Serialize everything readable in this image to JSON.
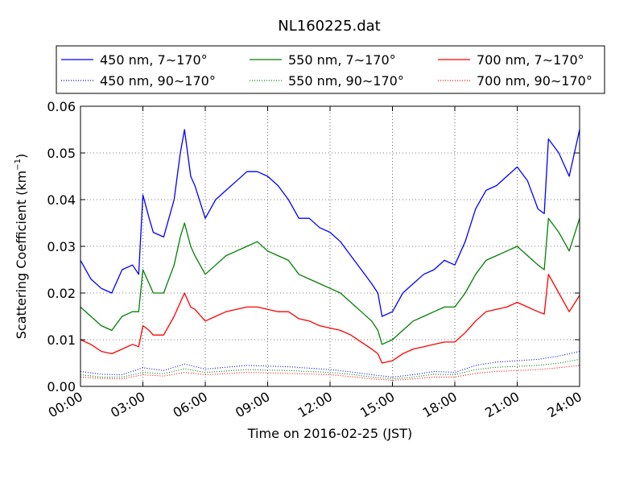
{
  "chart_data": {
    "type": "line",
    "title": "NL160225.dat",
    "xlabel": "Time on 2016-02-25 (JST)",
    "ylabel": "Scattering Coefficient (km",
    "ylabel_sup": "−1",
    "ylabel_end": ")",
    "x_unit": "hours",
    "xlim": [
      0,
      24
    ],
    "ylim": [
      0,
      0.06
    ],
    "x_ticks": [
      0,
      3,
      6,
      9,
      12,
      15,
      18,
      21,
      24
    ],
    "x_tick_labels": [
      "00:00",
      "03:00",
      "06:00",
      "09:00",
      "12:00",
      "15:00",
      "18:00",
      "21:00",
      "24:00"
    ],
    "y_ticks": [
      0,
      0.01,
      0.02,
      0.03,
      0.04,
      0.05,
      0.06
    ],
    "y_tick_labels": [
      "0.00",
      "0.01",
      "0.02",
      "0.03",
      "0.04",
      "0.05",
      "0.06"
    ],
    "grid": true,
    "legend_position": "top (above plot)",
    "series": [
      {
        "name": "450 nm, 7∼170°",
        "color": "#0000ff",
        "style": "solid",
        "x": [
          0,
          0.5,
          1,
          1.5,
          2,
          2.5,
          2.8,
          3,
          3.3,
          3.5,
          4,
          4.5,
          4.8,
          5,
          5.3,
          5.5,
          6,
          6.5,
          7,
          7.5,
          8,
          8.5,
          9,
          9.5,
          10,
          10.5,
          11,
          11.5,
          12,
          12.5,
          13,
          13.5,
          14,
          14.3,
          14.5,
          15,
          15.5,
          16,
          16.5,
          17,
          17.5,
          18,
          18.5,
          19,
          19.5,
          20,
          20.5,
          21,
          21.5,
          22,
          22.3,
          22.5,
          23,
          23.5,
          24
        ],
        "y": [
          0.027,
          0.023,
          0.021,
          0.02,
          0.025,
          0.026,
          0.024,
          0.041,
          0.036,
          0.033,
          0.032,
          0.04,
          0.05,
          0.055,
          0.045,
          0.043,
          0.036,
          0.04,
          0.042,
          0.044,
          0.046,
          0.046,
          0.045,
          0.043,
          0.04,
          0.036,
          0.036,
          0.034,
          0.033,
          0.031,
          0.028,
          0.025,
          0.022,
          0.02,
          0.015,
          0.016,
          0.02,
          0.022,
          0.024,
          0.025,
          0.027,
          0.026,
          0.031,
          0.038,
          0.042,
          0.043,
          0.045,
          0.047,
          0.044,
          0.038,
          0.037,
          0.053,
          0.05,
          0.045,
          0.055
        ]
      },
      {
        "name": "450 nm, 90∼170°",
        "color": "#0000ff",
        "style": "dotted",
        "x": [
          0,
          1,
          2,
          3,
          4,
          5,
          6,
          8,
          10,
          12,
          13,
          14,
          15,
          16,
          17,
          18,
          19,
          20,
          21,
          22,
          23,
          24
        ],
        "y": [
          0.0032,
          0.0026,
          0.0025,
          0.004,
          0.0034,
          0.0048,
          0.0037,
          0.0045,
          0.0042,
          0.0036,
          0.0031,
          0.0025,
          0.002,
          0.0025,
          0.0032,
          0.003,
          0.0045,
          0.0052,
          0.0055,
          0.0058,
          0.0065,
          0.0075
        ]
      },
      {
        "name": "550 nm, 7∼170°",
        "color": "#008000",
        "style": "solid",
        "x": [
          0,
          0.5,
          1,
          1.5,
          2,
          2.5,
          2.8,
          3,
          3.3,
          3.5,
          4,
          4.5,
          4.8,
          5,
          5.3,
          5.5,
          6,
          6.5,
          7,
          7.5,
          8,
          8.5,
          9,
          9.5,
          10,
          10.5,
          11,
          11.5,
          12,
          12.5,
          13,
          13.5,
          14,
          14.3,
          14.5,
          15,
          15.5,
          16,
          16.5,
          17,
          17.5,
          18,
          18.5,
          19,
          19.5,
          20,
          20.5,
          21,
          21.5,
          22,
          22.3,
          22.5,
          23,
          23.5,
          24
        ],
        "y": [
          0.017,
          0.015,
          0.013,
          0.012,
          0.015,
          0.016,
          0.016,
          0.025,
          0.022,
          0.02,
          0.02,
          0.026,
          0.032,
          0.035,
          0.03,
          0.028,
          0.024,
          0.026,
          0.028,
          0.029,
          0.03,
          0.031,
          0.029,
          0.028,
          0.027,
          0.024,
          0.023,
          0.022,
          0.021,
          0.02,
          0.018,
          0.016,
          0.014,
          0.012,
          0.009,
          0.01,
          0.012,
          0.014,
          0.015,
          0.016,
          0.017,
          0.017,
          0.02,
          0.024,
          0.027,
          0.028,
          0.029,
          0.03,
          0.028,
          0.026,
          0.025,
          0.036,
          0.033,
          0.029,
          0.036
        ]
      },
      {
        "name": "550 nm, 90∼170°",
        "color": "#008000",
        "style": "dotted",
        "x": [
          0,
          1,
          2,
          3,
          4,
          5,
          6,
          8,
          10,
          12,
          13,
          14,
          15,
          16,
          17,
          18,
          19,
          20,
          21,
          22,
          23,
          24
        ],
        "y": [
          0.0025,
          0.002,
          0.002,
          0.003,
          0.0027,
          0.0038,
          0.003,
          0.0036,
          0.0034,
          0.003,
          0.0026,
          0.002,
          0.0016,
          0.002,
          0.0026,
          0.0025,
          0.0036,
          0.0041,
          0.0043,
          0.0045,
          0.005,
          0.0058
        ]
      },
      {
        "name": "700 nm, 7∼170°",
        "color": "#ff0000",
        "style": "solid",
        "x": [
          0,
          0.5,
          1,
          1.5,
          2,
          2.5,
          2.8,
          3,
          3.3,
          3.5,
          4,
          4.5,
          4.8,
          5,
          5.3,
          5.5,
          6,
          6.5,
          7,
          7.5,
          8,
          8.5,
          9,
          9.5,
          10,
          10.5,
          11,
          11.5,
          12,
          12.5,
          13,
          13.5,
          14,
          14.3,
          14.5,
          15,
          15.5,
          16,
          16.5,
          17,
          17.5,
          18,
          18.5,
          19,
          19.5,
          20,
          20.5,
          21,
          21.5,
          22,
          22.3,
          22.5,
          23,
          23.5,
          24
        ],
        "y": [
          0.01,
          0.009,
          0.0075,
          0.007,
          0.008,
          0.009,
          0.0085,
          0.013,
          0.012,
          0.011,
          0.011,
          0.015,
          0.018,
          0.02,
          0.017,
          0.0165,
          0.014,
          0.015,
          0.016,
          0.0165,
          0.017,
          0.017,
          0.0165,
          0.016,
          0.016,
          0.0145,
          0.014,
          0.013,
          0.0125,
          0.012,
          0.011,
          0.0095,
          0.008,
          0.007,
          0.005,
          0.0055,
          0.007,
          0.008,
          0.0085,
          0.009,
          0.0095,
          0.0095,
          0.0115,
          0.014,
          0.016,
          0.0165,
          0.017,
          0.018,
          0.017,
          0.016,
          0.0155,
          0.024,
          0.02,
          0.016,
          0.0195
        ]
      },
      {
        "name": "700 nm, 90∼170°",
        "color": "#ff0000",
        "style": "dotted",
        "x": [
          0,
          1,
          2,
          3,
          4,
          5,
          6,
          8,
          10,
          12,
          13,
          14,
          15,
          16,
          17,
          18,
          19,
          20,
          21,
          22,
          23,
          24
        ],
        "y": [
          0.002,
          0.0017,
          0.0016,
          0.0025,
          0.0022,
          0.003,
          0.0025,
          0.003,
          0.0028,
          0.0025,
          0.0021,
          0.0016,
          0.0013,
          0.0016,
          0.002,
          0.002,
          0.0028,
          0.0032,
          0.0034,
          0.0036,
          0.004,
          0.0045
        ]
      }
    ]
  }
}
